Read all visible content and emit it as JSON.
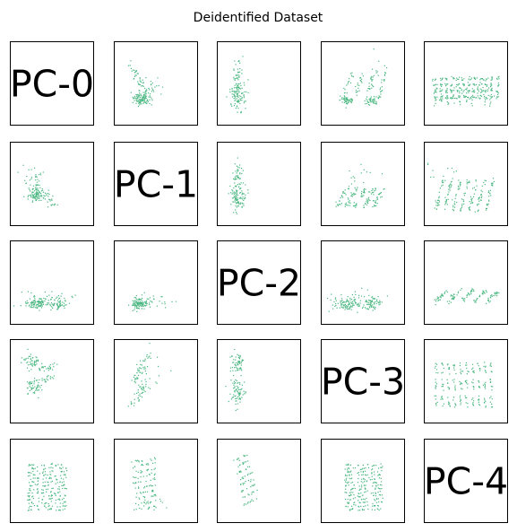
{
  "chart_data": {
    "type": "scatter",
    "title": "Deidentified Dataset",
    "layout": "pairplot",
    "rows": 5,
    "cols": 5,
    "diagonal_labels": [
      "PC-0",
      "PC-1",
      "PC-2",
      "PC-3",
      "PC-4"
    ],
    "point_color": "#4cb782",
    "grid": false,
    "ticks": false,
    "panels": [
      {
        "row": 0,
        "col": 1,
        "shape": "blob-diagonal-cluster"
      },
      {
        "row": 0,
        "col": 2,
        "shape": "vertical-blob"
      },
      {
        "row": 0,
        "col": 3,
        "shape": "blob-with-streaks"
      },
      {
        "row": 0,
        "col": 4,
        "shape": "vertical-banded-rows"
      },
      {
        "row": 1,
        "col": 0,
        "shape": "diagonal-spread"
      },
      {
        "row": 1,
        "col": 2,
        "shape": "vertical-blob"
      },
      {
        "row": 1,
        "col": 3,
        "shape": "diagonal-streaks"
      },
      {
        "row": 1,
        "col": 4,
        "shape": "diagonal-streaks-dense"
      },
      {
        "row": 2,
        "col": 0,
        "shape": "flat-bottom-cluster"
      },
      {
        "row": 2,
        "col": 1,
        "shape": "compact-cluster"
      },
      {
        "row": 2,
        "col": 3,
        "shape": "flat-bottom-cluster"
      },
      {
        "row": 2,
        "col": 4,
        "shape": "diagonal-streaks-short"
      },
      {
        "row": 3,
        "col": 0,
        "shape": "left-stacked-blobs"
      },
      {
        "row": 3,
        "col": 1,
        "shape": "stacked-diagonals"
      },
      {
        "row": 3,
        "col": 2,
        "shape": "vertical-two-blobs"
      },
      {
        "row": 3,
        "col": 4,
        "shape": "banded-rows"
      },
      {
        "row": 4,
        "col": 0,
        "shape": "vertical-columns"
      },
      {
        "row": 4,
        "col": 1,
        "shape": "slanted-rows"
      },
      {
        "row": 4,
        "col": 2,
        "shape": "slanted-column"
      },
      {
        "row": 4,
        "col": 3,
        "shape": "vertical-columns-wide"
      }
    ]
  }
}
